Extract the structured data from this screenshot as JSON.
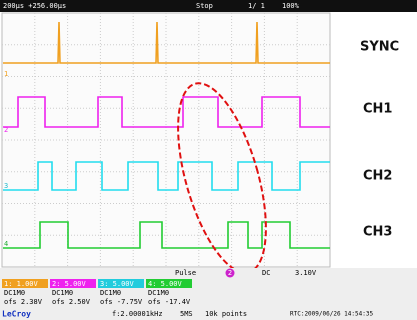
{
  "status_bar": {
    "timebase": "200μs +256.00μs",
    "state": "Stop",
    "acquisitions": "1/  1",
    "zoom": "100%"
  },
  "waveform_labels": [
    "SYNC",
    "CH1",
    "CH2",
    "CH3"
  ],
  "channel_markers": [
    "1",
    "2",
    "3",
    "4"
  ],
  "trigger": {
    "mode": "Pulse",
    "source": "2",
    "coupling": "DC",
    "level": "3.10V"
  },
  "channels": [
    {
      "scale": "1: 1.00V",
      "coupling": "DC1M0",
      "offset": "ofs 2.38V"
    },
    {
      "scale": "2: 5.00V",
      "coupling": "DC1M0",
      "offset": "ofs 2.50V"
    },
    {
      "scale": "3: 5.00V",
      "coupling": "DC1M0",
      "offset": "ofs -7.75V"
    },
    {
      "scale": "4: 5.00V",
      "coupling": "DC1M0",
      "offset": "ofs -17.4V"
    }
  ],
  "footer": {
    "brand": "LeCroy",
    "frequency": "f:2.00001kHz",
    "sample_rate": "5MS",
    "points": "10k points",
    "rtc": "RTC:2009/06/26 14:54:35"
  }
}
